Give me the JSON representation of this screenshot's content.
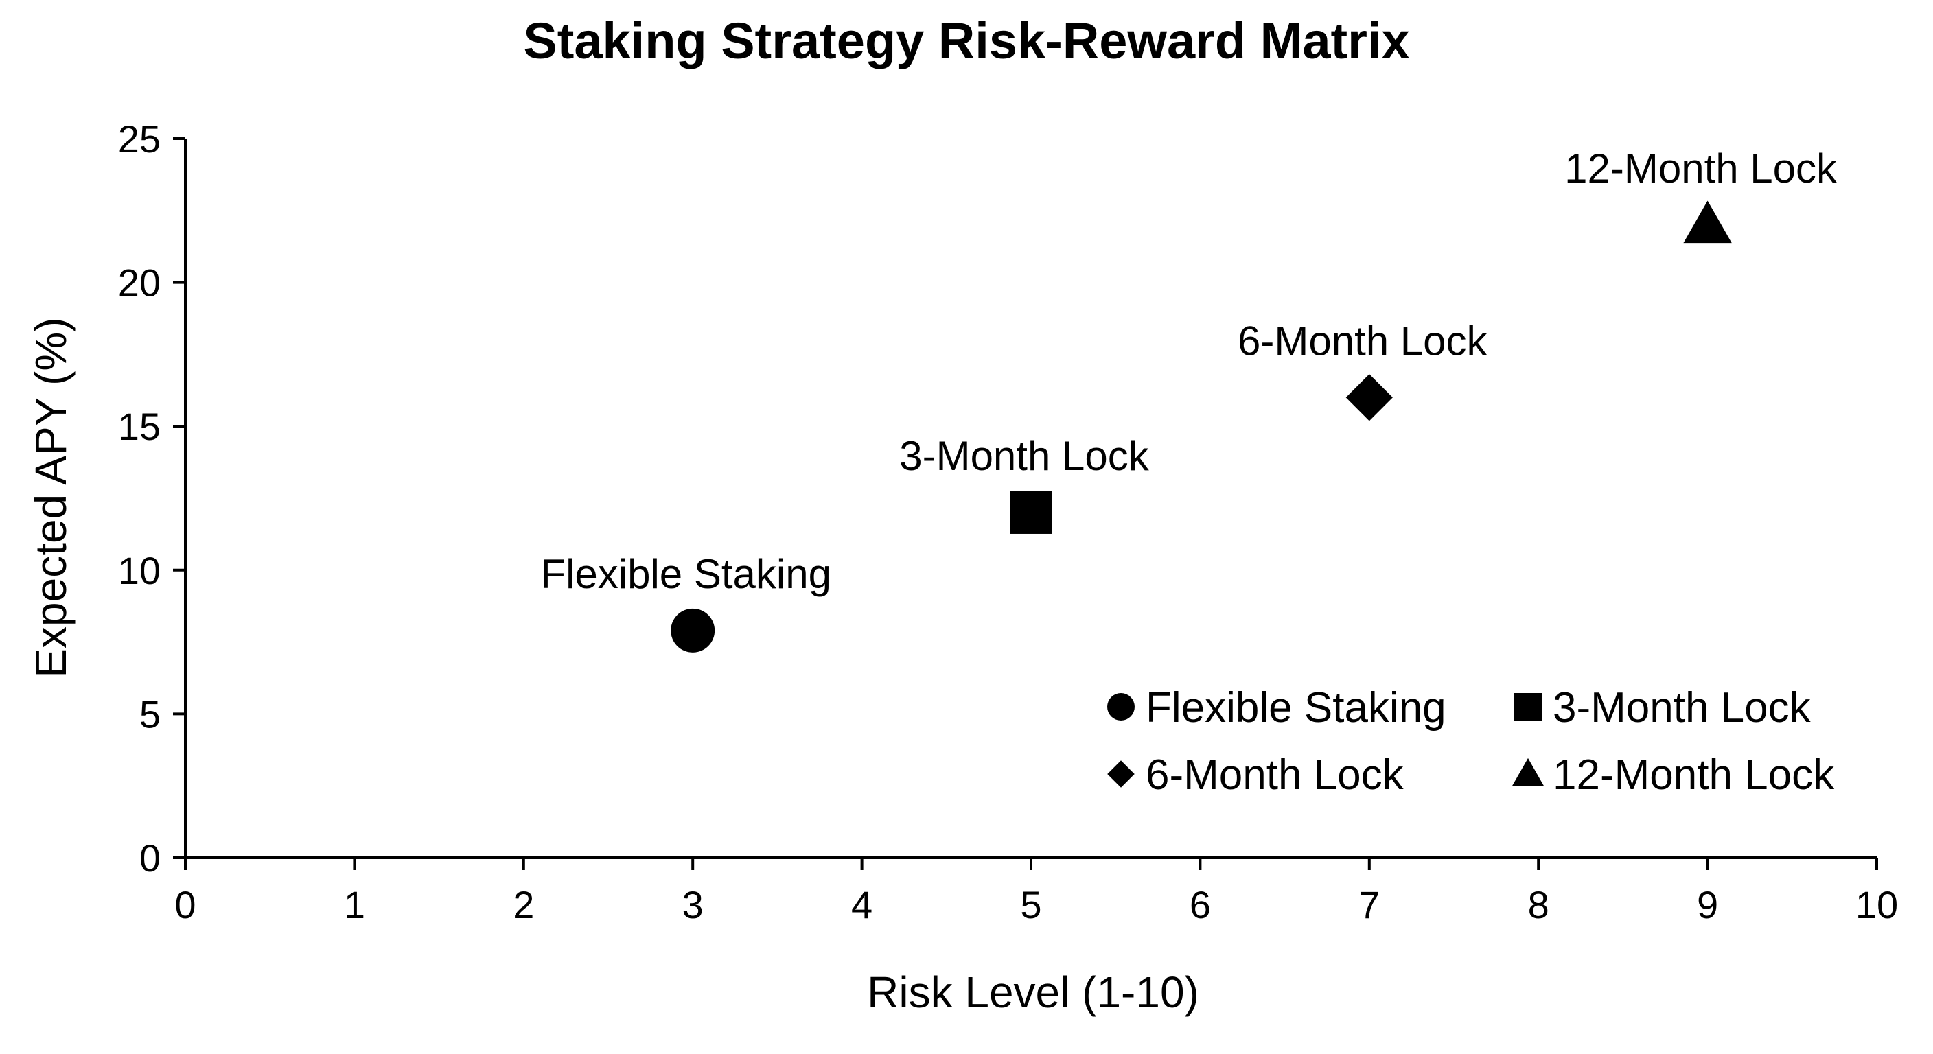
{
  "chart_data": {
    "type": "scatter",
    "title": "Staking Strategy Risk-Reward Matrix",
    "xlabel": "Risk Level (1-10)",
    "ylabel": "Expected APY (%)",
    "xlim": [
      0,
      10
    ],
    "ylim": [
      0,
      25
    ],
    "xticks": [
      0,
      1,
      2,
      3,
      4,
      5,
      6,
      7,
      8,
      9,
      10
    ],
    "yticks": [
      0,
      5,
      10,
      15,
      20,
      25
    ],
    "grid": false,
    "legend_position": "bottom-right",
    "series": [
      {
        "name": "Flexible Staking",
        "marker": "circle",
        "color": "#000000",
        "points": [
          {
            "x": 3,
            "y": 7.9
          }
        ]
      },
      {
        "name": "3-Month Lock",
        "marker": "square",
        "color": "#000000",
        "points": [
          {
            "x": 5,
            "y": 12
          }
        ]
      },
      {
        "name": "6-Month Lock",
        "marker": "diamond",
        "color": "#000000",
        "points": [
          {
            "x": 7,
            "y": 16
          }
        ]
      },
      {
        "name": "12-Month Lock",
        "marker": "triangle",
        "color": "#000000",
        "points": [
          {
            "x": 9,
            "y": 22
          }
        ]
      }
    ],
    "annotations": [
      {
        "text": "Flexible Staking",
        "x": 3,
        "y": 7.9
      },
      {
        "text": "3-Month Lock",
        "x": 5,
        "y": 12
      },
      {
        "text": "6-Month Lock",
        "x": 7,
        "y": 16
      },
      {
        "text": "12-Month Lock",
        "x": 9,
        "y": 22
      }
    ]
  }
}
